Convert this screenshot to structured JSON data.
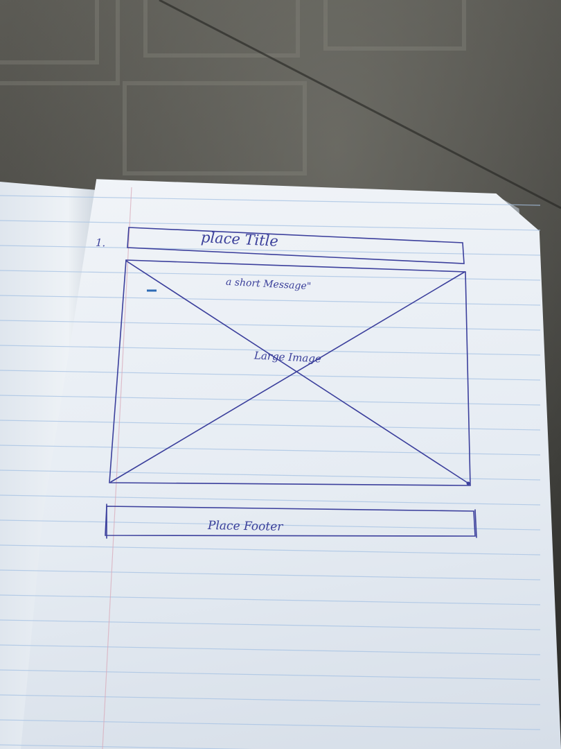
{
  "notebook": {
    "item_number": "1.",
    "title_box_label": "place Title",
    "short_message": "a short Message\"",
    "image_label": "Large Image",
    "footer_box_label": "Place Footer"
  }
}
